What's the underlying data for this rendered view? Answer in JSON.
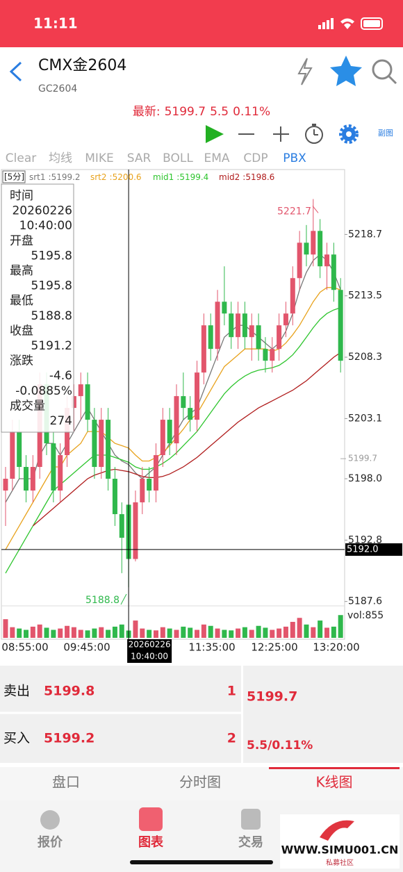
{
  "status": {
    "time": "11:11"
  },
  "header": {
    "title": "CMX金2604",
    "code": "GC2604"
  },
  "quote": {
    "label": "最新:",
    "last": 5199.7,
    "change": 5.5,
    "change_pct": "0.11%"
  },
  "toolbar": {
    "subchart": "副图"
  },
  "indicators": {
    "tabs": [
      "Clear",
      "均线",
      "MIKE",
      "SAR",
      "BOLL",
      "EMA",
      "CDP",
      "PBX"
    ],
    "active": 7
  },
  "kline": {
    "period": "[5分]",
    "ylim": [
      5184.4,
      5224.2
    ],
    "yticks": [
      5218.7,
      5213.5,
      5208.3,
      5203.1,
      {
        "value": 5198,
        "label": "5198.0"
      },
      5192.8,
      5187.6
    ],
    "up_color": "#e2556c",
    "down_color": "#2fb84c",
    "candles": [
      [
        5197,
        5199,
        5194,
        5198
      ],
      [
        5198,
        5203,
        5197,
        5202
      ],
      [
        5202,
        5203,
        5198,
        5199
      ],
      [
        5199,
        5200,
        5196,
        5197
      ],
      [
        5197,
        5200,
        5196,
        5199
      ],
      [
        5199,
        5207,
        5198,
        5206
      ],
      [
        5206,
        5207,
        5200,
        5201
      ],
      [
        5201,
        5202,
        5196,
        5197
      ],
      [
        5197,
        5201,
        5196,
        5200
      ],
      [
        5200,
        5205,
        5199,
        5204
      ],
      [
        5204,
        5206,
        5202,
        5205
      ],
      [
        5205,
        5207,
        5203,
        5206
      ],
      [
        5206,
        5207,
        5202,
        5203
      ],
      [
        5203,
        5204,
        5198,
        5199
      ],
      [
        5199,
        5204,
        5198,
        5203
      ],
      [
        5203,
        5204,
        5197,
        5198
      ],
      [
        5198,
        5199,
        5194,
        5195
      ],
      [
        5195,
        5196,
        5190,
        5193
      ],
      [
        5195.8,
        5195.8,
        5188.8,
        5191.2
      ],
      [
        5191.2,
        5197,
        5191,
        5196
      ],
      [
        5196,
        5199,
        5195,
        5198
      ],
      [
        5198,
        5199,
        5196,
        5197
      ],
      [
        5197,
        5201,
        5196,
        5200
      ],
      [
        5200,
        5204,
        5199,
        5203
      ],
      [
        5203,
        5204,
        5200,
        5201
      ],
      [
        5201,
        5206,
        5200,
        5205
      ],
      [
        5205,
        5207,
        5203,
        5204
      ],
      [
        5204,
        5205,
        5202,
        5203
      ],
      [
        5203,
        5208,
        5202,
        5207
      ],
      [
        5207,
        5212,
        5206,
        5211
      ],
      [
        5211,
        5212,
        5208,
        5209
      ],
      [
        5209,
        5214,
        5208,
        5213
      ],
      [
        5213,
        5216,
        5211,
        5212
      ],
      [
        5212,
        5213,
        5209,
        5210
      ],
      [
        5210,
        5213,
        5209,
        5212
      ],
      [
        5212,
        5213,
        5209,
        5210
      ],
      [
        5210,
        5212,
        5208,
        5211
      ],
      [
        5211,
        5212,
        5208,
        5209
      ],
      [
        5209,
        5210,
        5207,
        5208
      ],
      [
        5208,
        5210,
        5207,
        5209
      ],
      [
        5209,
        5212,
        5208,
        5211
      ],
      [
        5211,
        5213,
        5210,
        5212
      ],
      [
        5212,
        5216,
        5211,
        5215
      ],
      [
        5215,
        5219,
        5214,
        5218
      ],
      [
        5218,
        5219.5,
        5216,
        5217
      ],
      [
        5217,
        5221.7,
        5216,
        5219
      ],
      [
        5219,
        5220,
        5215,
        5216
      ],
      [
        5216,
        5218,
        5214,
        5217
      ],
      [
        5217,
        5218,
        5213,
        5214
      ],
      [
        5214,
        5215,
        5207,
        5208
      ]
    ],
    "lines": [
      {
        "name": "srt1",
        "color": "#777777",
        "values": [
          5196,
          5197,
          5198,
          5198,
          5198,
          5200,
          5201,
          5201,
          5200,
          5201,
          5202,
          5203,
          5204,
          5203,
          5202,
          5201,
          5200,
          5199.5,
          5199.2,
          5198.5,
          5198,
          5198.5,
          5199,
          5200,
          5201,
          5202,
          5203,
          5203.5,
          5204,
          5205.5,
          5207,
          5208.5,
          5210,
          5210.5,
          5211,
          5211,
          5210.5,
          5210,
          5209.5,
          5209,
          5209.5,
          5210.5,
          5212,
          5214,
          5215.5,
          5216.5,
          5217,
          5216.5,
          5215.5,
          5214
        ]
      },
      {
        "name": "srt2",
        "color": "#e8a21c",
        "values": [
          5192,
          5193,
          5194,
          5195,
          5196,
          5197,
          5198,
          5199,
          5199,
          5200,
          5200.5,
          5201,
          5202,
          5202,
          5202,
          5201.5,
          5201,
          5200.8,
          5200.6,
          5200,
          5199.5,
          5199.5,
          5199.8,
          5200.2,
          5200.8,
          5201.5,
          5202.2,
          5203,
          5203.5,
          5204.5,
          5205.5,
          5206.5,
          5207.5,
          5208,
          5208.5,
          5209,
          5209,
          5209,
          5209,
          5208.8,
          5209,
          5209.5,
          5210.2,
          5211,
          5212,
          5213,
          5213.8,
          5214.2,
          5214.2,
          5214
        ]
      },
      {
        "name": "mid1",
        "color": "#2ec52e",
        "values": [
          5190,
          5191,
          5192,
          5193,
          5194,
          5195,
          5196,
          5197,
          5197.5,
          5198,
          5198.5,
          5199,
          5199.5,
          5200,
          5200,
          5200,
          5199.8,
          5199.6,
          5199.4,
          5199,
          5198.8,
          5198.8,
          5199,
          5199.3,
          5199.7,
          5200.2,
          5200.8,
          5201.4,
          5202,
          5202.8,
          5203.6,
          5204.4,
          5205.2,
          5205.8,
          5206.3,
          5206.7,
          5207,
          5207.2,
          5207.3,
          5207.4,
          5207.6,
          5208,
          5208.5,
          5209.2,
          5210,
          5210.8,
          5211.5,
          5212,
          5212.3,
          5212.5
        ]
      },
      {
        "name": "mid2",
        "color": "#b01c1c",
        "values": [
          null,
          null,
          null,
          null,
          5194,
          5194.5,
          5195,
          5195.5,
          5196,
          5196.5,
          5197,
          5197.5,
          5198,
          5198.3,
          5198.5,
          5198.7,
          5198.8,
          5198.7,
          5198.6,
          5198.4,
          5198.2,
          5198.1,
          5198.1,
          5198.2,
          5198.4,
          5198.7,
          5199,
          5199.4,
          5199.8,
          5200.3,
          5200.8,
          5201.3,
          5201.8,
          5202.3,
          5202.8,
          5203.2,
          5203.6,
          5204,
          5204.3,
          5204.6,
          5204.9,
          5205.2,
          5205.5,
          5205.9,
          5206.3,
          5206.8,
          5207.3,
          5207.8,
          5208.3,
          5208.7
        ]
      }
    ],
    "volume": {
      "label": "vol:",
      "ylim": [
        0,
        1200
      ],
      "values": [
        700,
        400,
        350,
        300,
        420,
        500,
        380,
        300,
        350,
        450,
        400,
        300,
        280,
        350,
        400,
        300,
        420,
        500,
        274,
        650,
        350,
        300,
        280,
        400,
        350,
        300,
        420,
        380,
        300,
        500,
        450,
        350,
        300,
        280,
        350,
        400,
        300,
        450,
        380,
        300,
        350,
        420,
        600,
        750,
        500,
        400,
        650,
        380,
        420,
        855
      ]
    },
    "cursor_price": {
      "value": 5192,
      "label": "5192.0"
    },
    "time_axis": [
      "08:55:00",
      "09:45:00",
      "11:35:00",
      "12:25:00",
      "13:20:00"
    ]
  },
  "info": {
    "labels": [
      "时间",
      "开盘",
      "最高",
      "最低",
      "收盘",
      "涨跌",
      "成交量"
    ],
    "date": "20260226",
    "clock": "10:40:00",
    "change": -4.6,
    "change_pct": "-0.0885%"
  },
  "orderbook": {
    "ask_label": "卖出",
    "ask": 5199.8,
    "ask_qty": 1,
    "bid_label": "买入",
    "bid": 5199.2,
    "bid_qty": 2,
    "change_text": "5.5/0.11%"
  },
  "tabs": {
    "items": [
      "盘口",
      "分时图",
      "K线图"
    ],
    "active": 2
  },
  "nav": {
    "items": [
      "报价",
      "图表",
      "交易"
    ],
    "active": 1
  },
  "watermark": {
    "url": "WWW.SIMU001.CN",
    "name": "私募社区"
  }
}
